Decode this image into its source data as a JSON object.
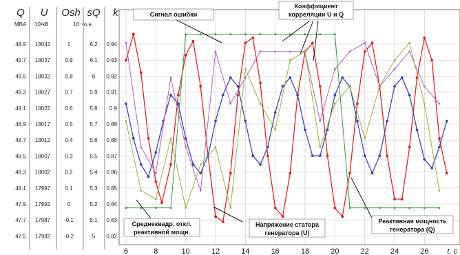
{
  "chart_data": {
    "type": "line",
    "xlabel": "t, c",
    "x_ticks": [
      "6",
      "8",
      "10",
      "12",
      "14",
      "16",
      "18",
      "20",
      "22",
      "24",
      "26"
    ],
    "xlim": [
      6,
      27.5
    ],
    "k_ticks": [
      "0.94",
      "0.93",
      "0.92",
      "0.91",
      "0.9",
      "0.89",
      "0.88",
      "0.87",
      "0.86",
      "0.85",
      "0.84",
      "0.83",
      "0.82"
    ],
    "ylim": [
      0.82,
      0.953
    ],
    "left_axes": [
      {
        "symbol": "Q",
        "unit": "МВА",
        "ticks": [
          "49.9",
          "49.7",
          "49.5",
          "49.3",
          "49.1",
          "48.9",
          "48.7",
          "48.5",
          "48.3",
          "48.1",
          "47.9",
          "47.7",
          "47.5"
        ]
      },
      {
        "symbol": "U",
        "unit": "10³кВ",
        "ticks": [
          "18042",
          "18037",
          "18032",
          "18027",
          "18022",
          "18017",
          "18012",
          "18007",
          "18002",
          "17997",
          "17992",
          "17987",
          "17982"
        ]
      },
      {
        "symbol": "Osh",
        "unit": "",
        "ticks": [
          "1",
          "0.9",
          "0.8",
          "0.7",
          "0.6",
          "0.5",
          "0.4",
          "0.3",
          "0.2",
          "0.1",
          "0",
          "-0.1",
          "-0.2"
        ]
      },
      {
        "symbol": "sQ",
        "unit": "10⁻³о.е.",
        "ticks": [
          "6.2",
          "6.1",
          "6",
          "5.9",
          "5.8",
          "5.7",
          "5.6",
          "5.5",
          "5.4",
          "5.3",
          "5.2",
          "5.1",
          "5"
        ]
      },
      {
        "symbol": "k",
        "unit": "",
        "ticks": []
      }
    ],
    "annotations": {
      "error": "Сигнал ошибки",
      "corr1": "Коэффициент",
      "corr2": "корреляции U и Q",
      "rms1": "Среднеквадр. откл.",
      "rms2": "реактивной мощн.",
      "volt1": "Напряжение статора",
      "volt2": "генератора (U)",
      "react1": "Реактивная мощность",
      "react2": "генератора (Q)"
    },
    "series": [
      {
        "color": "#e02020",
        "x": [
          6,
          6.5,
          7,
          7.5,
          8,
          8.4,
          9,
          9.5,
          10,
          10.5,
          11,
          11.5,
          12,
          12.5,
          13,
          13.5,
          14,
          14.5,
          15,
          15.5,
          16,
          16.5,
          17,
          17.5,
          18,
          18.5,
          19,
          19.5,
          20,
          20.5,
          21,
          21.5,
          22,
          22.5,
          23,
          23.5,
          24,
          24.5,
          25,
          25.5,
          26,
          26.5,
          27,
          27.5
        ],
        "y": [
          0.925,
          0.94,
          0.918,
          0.88,
          0.855,
          0.843,
          0.865,
          0.905,
          0.928,
          0.936,
          0.91,
          0.87,
          0.835,
          0.832,
          0.86,
          0.905,
          0.935,
          0.938,
          0.912,
          0.87,
          0.84,
          0.835,
          0.86,
          0.905,
          0.93,
          0.935,
          0.91,
          0.87,
          0.84,
          0.835,
          0.86,
          0.9,
          0.93,
          0.935,
          0.91,
          0.87,
          0.845,
          0.845,
          0.875,
          0.915,
          0.938,
          0.925,
          0.88,
          0.86
        ]
      },
      {
        "color": "#3a46b0",
        "x": [
          6,
          6.5,
          7,
          7.5,
          8,
          8.5,
          9,
          9.5,
          10,
          10.5,
          11,
          11.5,
          12,
          12.5,
          13,
          13.5,
          14,
          14.5,
          15,
          15.5,
          16,
          16.5,
          17,
          17.5,
          18,
          18.5,
          19,
          19.5,
          20,
          20.5,
          21,
          21.5,
          22,
          22.5,
          23,
          23.5,
          24,
          24.5,
          25,
          25.5,
          26,
          26.5,
          27,
          27.5
        ],
        "y": [
          0.9,
          0.88,
          0.865,
          0.858,
          0.872,
          0.89,
          0.905,
          0.9,
          0.88,
          0.865,
          0.86,
          0.87,
          0.89,
          0.905,
          0.915,
          0.91,
          0.89,
          0.87,
          0.865,
          0.875,
          0.895,
          0.91,
          0.915,
          0.905,
          0.885,
          0.87,
          0.87,
          0.885,
          0.905,
          0.915,
          0.91,
          0.89,
          0.87,
          0.86,
          0.87,
          0.89,
          0.91,
          0.915,
          0.905,
          0.885,
          0.868,
          0.863,
          0.875,
          0.89
        ]
      },
      {
        "color": "#b060c0",
        "x": [
          6,
          7,
          8,
          9,
          10,
          11,
          12,
          13,
          14,
          15,
          16,
          17,
          18,
          19,
          20,
          21,
          22,
          23,
          24,
          25,
          26,
          27
        ],
        "y": [
          0.935,
          0.875,
          0.86,
          0.915,
          0.875,
          0.85,
          0.93,
          0.9,
          0.915,
          0.93,
          0.93,
          0.93,
          0.93,
          0.89,
          0.92,
          0.93,
          0.935,
          0.91,
          0.92,
          0.93,
          0.91,
          0.9
        ]
      },
      {
        "color": "#9ab030",
        "x": [
          6,
          7,
          8,
          9,
          10,
          11,
          12,
          13,
          14,
          15,
          16,
          17,
          18,
          19,
          20,
          21,
          22,
          23,
          24,
          25,
          26,
          27
        ],
        "y": [
          0.89,
          0.85,
          0.845,
          0.88,
          0.84,
          0.865,
          0.875,
          0.84,
          0.92,
          0.9,
          0.885,
          0.925,
          0.93,
          0.875,
          0.9,
          0.91,
          0.88,
          0.91,
          0.925,
          0.935,
          0.9,
          0.85
        ]
      },
      {
        "color": "#2e9a2e",
        "x": [
          6,
          7,
          8,
          9,
          10,
          11,
          12,
          13,
          14,
          15,
          16,
          17,
          18,
          19,
          20,
          21,
          22,
          23,
          24,
          25,
          26,
          27
        ],
        "y": [
          0.84,
          0.84,
          0.84,
          0.84,
          0.94,
          0.94,
          0.94,
          0.94,
          0.94,
          0.94,
          0.94,
          0.94,
          0.94,
          0.94,
          0.94,
          0.84,
          0.84,
          0.84,
          0.84,
          0.84,
          0.84,
          0.84
        ]
      }
    ]
  }
}
